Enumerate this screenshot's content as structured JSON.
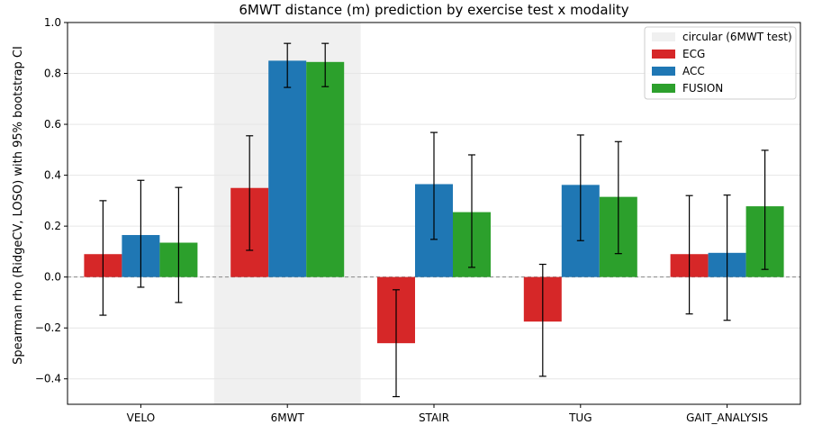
{
  "chart_data": {
    "type": "bar",
    "title": "6MWT distance (m) prediction by exercise test x modality",
    "xlabel": "",
    "ylabel": "Spearman rho (RidgeCV, LOSO) with 95% bootstrap CI",
    "categories": [
      "VELO",
      "6MWT",
      "STAIR",
      "TUG",
      "GAIT_ANALYSIS"
    ],
    "ylim": [
      -0.5,
      1.0
    ],
    "yticks": [
      -0.4,
      -0.2,
      0.0,
      0.2,
      0.4,
      0.6,
      0.8,
      1.0
    ],
    "ytick_labels": [
      "−0.4",
      "−0.2",
      "0.0",
      "0.2",
      "0.4",
      "0.6",
      "0.8",
      "1.0"
    ],
    "grid": true,
    "zero_line": true,
    "legend_position": "top-right",
    "highlight": {
      "category": "6MWT",
      "label": "circular (6MWT test)",
      "color": "#f0f0f0"
    },
    "series": [
      {
        "name": "ECG",
        "color": "#d62728",
        "values": [
          0.09,
          0.35,
          -0.26,
          -0.175,
          0.09
        ],
        "ci_low": [
          -0.15,
          0.105,
          -0.47,
          -0.39,
          -0.145
        ],
        "ci_high": [
          0.3,
          0.555,
          -0.05,
          0.05,
          0.32
        ]
      },
      {
        "name": "ACC",
        "color": "#1f77b4",
        "values": [
          0.165,
          0.85,
          0.365,
          0.362,
          0.095
        ],
        "ci_low": [
          -0.04,
          0.745,
          0.148,
          0.143,
          -0.17
        ],
        "ci_high": [
          0.38,
          0.918,
          0.568,
          0.558,
          0.322
        ]
      },
      {
        "name": "FUSION",
        "color": "#2ca02c",
        "values": [
          0.135,
          0.845,
          0.255,
          0.315,
          0.278
        ],
        "ci_low": [
          -0.1,
          0.748,
          0.038,
          0.092,
          0.03
        ],
        "ci_high": [
          0.352,
          0.918,
          0.48,
          0.532,
          0.498
        ]
      }
    ]
  }
}
